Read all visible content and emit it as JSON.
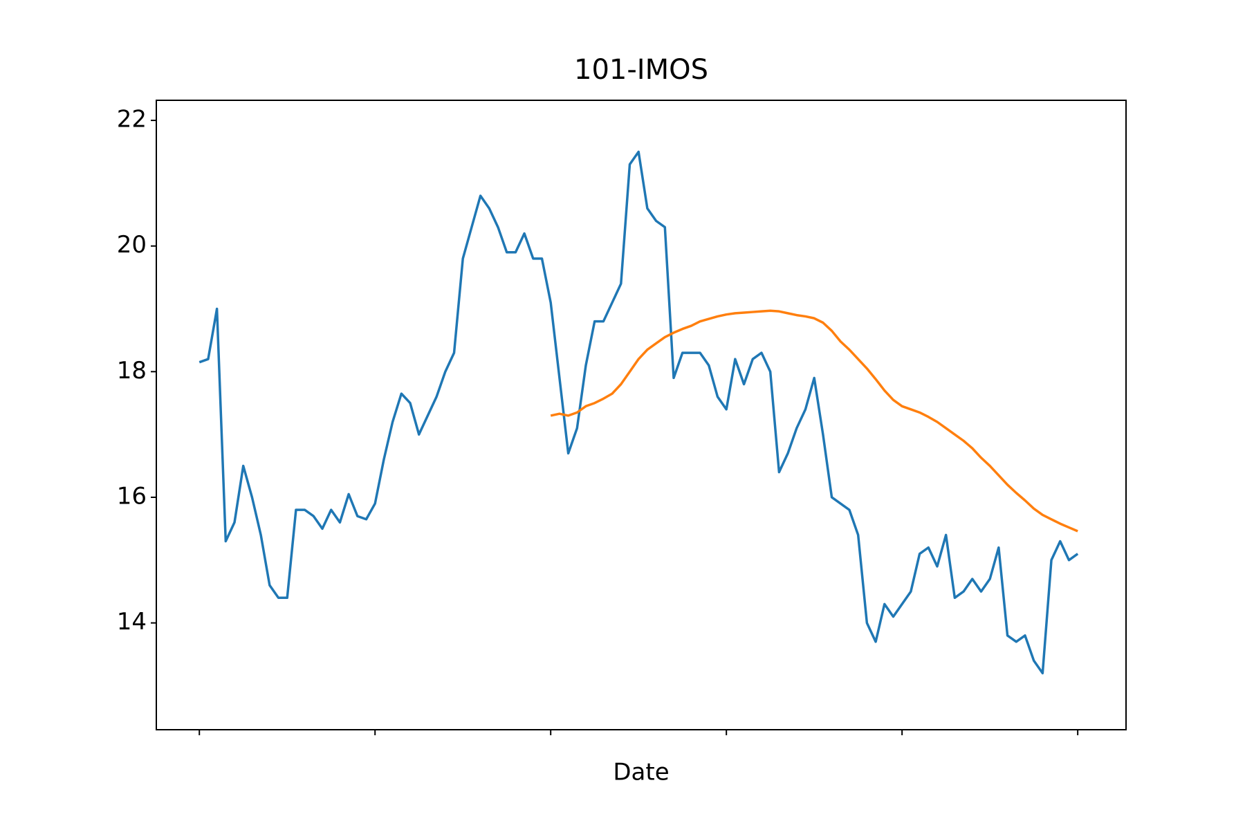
{
  "chart_data": {
    "type": "line",
    "title": "101-IMOS",
    "xlabel": "Date",
    "categories": [
      null,
      null,
      null,
      null,
      null,
      null,
      null,
      null,
      null,
      null,
      null,
      null,
      null,
      null,
      null,
      null,
      null,
      null,
      null,
      null,
      null,
      null,
      null,
      null,
      null,
      null,
      null,
      null,
      null,
      null,
      null,
      null,
      null,
      null,
      null,
      null,
      null,
      null,
      null,
      null,
      null,
      null,
      null,
      null,
      null,
      null,
      null,
      null,
      null,
      null,
      null,
      null,
      null,
      null,
      null,
      null,
      null,
      null,
      null,
      null,
      null,
      null,
      null,
      null,
      null,
      null,
      null,
      null,
      null,
      null,
      null,
      null,
      null,
      null,
      null,
      null,
      null,
      null,
      null,
      null,
      null,
      null,
      null,
      null,
      null,
      null,
      null,
      null,
      null,
      null,
      null,
      null,
      null,
      null,
      null,
      null,
      null,
      null,
      null,
      null,
      null
    ],
    "series": [
      {
        "color": "#1f77b4",
        "values": [
          18.15,
          18.2,
          19.0,
          15.3,
          15.6,
          16.5,
          16.0,
          15.4,
          14.6,
          14.4,
          14.4,
          15.8,
          15.8,
          15.7,
          15.5,
          15.8,
          15.6,
          16.05,
          15.7,
          15.65,
          15.9,
          16.6,
          17.2,
          17.65,
          17.5,
          17.0,
          17.3,
          17.6,
          18.0,
          18.3,
          19.8,
          20.3,
          20.8,
          20.6,
          20.3,
          19.9,
          19.9,
          20.2,
          19.8,
          19.8,
          19.1,
          17.9,
          16.7,
          17.1,
          18.1,
          18.8,
          18.8,
          19.1,
          19.4,
          21.3,
          21.5,
          20.6,
          20.4,
          20.3,
          17.9,
          18.3,
          18.3,
          18.3,
          18.1,
          17.6,
          17.4,
          18.2,
          17.8,
          18.2,
          18.3,
          18.0,
          16.4,
          16.7,
          17.1,
          17.4,
          17.9,
          17.0,
          16.0,
          15.9,
          15.8,
          15.4,
          14.0,
          13.7,
          14.3,
          14.1,
          14.3,
          14.5,
          15.1,
          15.2,
          14.9,
          15.4,
          14.4,
          14.5,
          14.7,
          14.5,
          14.7,
          15.2,
          13.8,
          13.7,
          13.8,
          13.4,
          13.2,
          15.0,
          15.3,
          15.0,
          15.1
        ]
      },
      {
        "color": "#ff7f0e",
        "values": [
          null,
          null,
          null,
          null,
          null,
          null,
          null,
          null,
          null,
          null,
          null,
          null,
          null,
          null,
          null,
          null,
          null,
          null,
          null,
          null,
          null,
          null,
          null,
          null,
          null,
          null,
          null,
          null,
          null,
          null,
          null,
          null,
          null,
          null,
          null,
          null,
          null,
          null,
          null,
          null,
          17.3,
          17.33,
          17.3,
          17.35,
          17.45,
          17.5,
          17.57,
          17.65,
          17.8,
          18.0,
          18.2,
          18.35,
          18.45,
          18.55,
          18.62,
          18.68,
          18.73,
          18.8,
          18.84,
          18.88,
          18.91,
          18.93,
          18.94,
          18.95,
          18.96,
          18.97,
          18.96,
          18.93,
          18.9,
          18.88,
          18.85,
          18.78,
          18.65,
          18.48,
          18.35,
          18.2,
          18.05,
          17.88,
          17.7,
          17.55,
          17.45,
          17.4,
          17.35,
          17.28,
          17.2,
          17.1,
          17.0,
          16.9,
          16.78,
          16.63,
          16.5,
          16.35,
          16.2,
          16.07,
          15.95,
          15.82,
          15.72,
          15.65,
          15.58,
          15.52,
          15.46
        ]
      }
    ],
    "ylim": [
      12.3,
      22.32
    ],
    "yticks": [
      14,
      16,
      18,
      20,
      22
    ]
  }
}
